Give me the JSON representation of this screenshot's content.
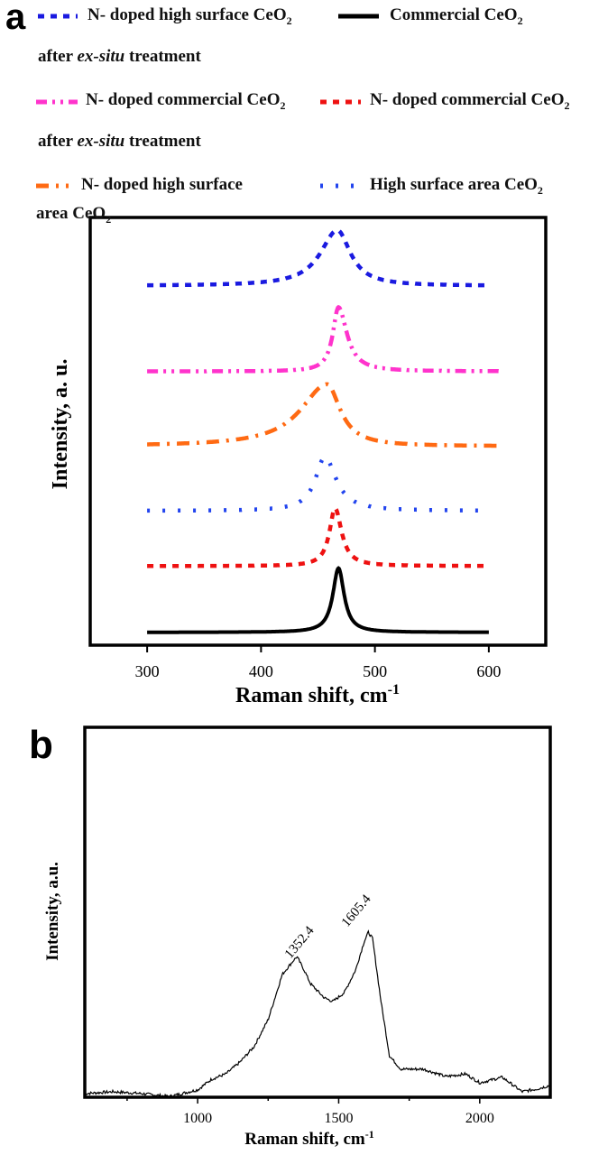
{
  "chart_data": [
    {
      "panel_label": "a",
      "type": "line",
      "xlabel": "Raman shift, cm",
      "xlabel_sup": "-1",
      "ylabel": "Intensity, a. u.",
      "xlim": [
        250,
        650
      ],
      "ylim": [
        0,
        100
      ],
      "xticks": [
        300,
        400,
        500,
        600
      ],
      "xtick_labels": [
        "300",
        "400",
        "500",
        "600"
      ],
      "grid": false,
      "legend_placement": "top, above plot",
      "series": [
        {
          "name": "N- doped high surface CeO₂ after ex-situ treatment",
          "color": "#1a1ae0",
          "style": "dashed",
          "x_range": [
            300,
            600
          ],
          "baseline": 84,
          "peak_height": 13,
          "peak_center": 467,
          "hwhm_left": 18,
          "hwhm_right": 14
        },
        {
          "name": "Commercial CeO₂",
          "color": "#000000",
          "style": "solid",
          "x_range": [
            300,
            600
          ],
          "baseline": 3,
          "peak_height": 15,
          "peak_center": 468,
          "hwhm_left": 6,
          "hwhm_right": 6
        },
        {
          "name": "N- doped commercial CeO₂ after ex-situ treatment",
          "color": "#ff33cc",
          "style": "dash-dot-dot",
          "x_range": [
            300,
            610
          ],
          "baseline": 64,
          "peak_height": 15,
          "peak_center": 468,
          "hwhm_left": 6,
          "hwhm_right": 9
        },
        {
          "name": "N- doped commercial CeO₂",
          "color": "#ee1111",
          "style": "dashed",
          "x_range": [
            300,
            600
          ],
          "baseline": 18.5,
          "peak_height": 13.5,
          "peak_center": 465,
          "hwhm_left": 6,
          "hwhm_right": 7
        },
        {
          "name": "N- doped high surface area CeO₂",
          "color": "#ff6a13",
          "style": "dash-dot",
          "x_range": [
            300,
            610
          ],
          "baseline": 46.5,
          "peak_height": 14.5,
          "peak_center": 458,
          "hwhm_left": 28,
          "hwhm_right": 14
        },
        {
          "name": "High surface area CeO₂",
          "color": "#2244ee",
          "style": "dotted",
          "x_range": [
            300,
            600
          ],
          "baseline": 31.4,
          "peak_height": 12.6,
          "peak_center": 456,
          "hwhm_left": 10,
          "hwhm_right": 12
        }
      ]
    },
    {
      "panel_label": "b",
      "type": "line",
      "xlabel": "Raman shift, cm",
      "xlabel_sup": "-1",
      "ylabel": "Intensity, a.u.",
      "xlim": [
        600,
        2250
      ],
      "ylim": [
        0,
        100
      ],
      "xticks": [
        1000,
        1500,
        2000
      ],
      "xtick_labels": [
        "1000",
        "1500",
        "2000"
      ],
      "grid": false,
      "annotations": [
        {
          "text": "1352.4",
          "x": 1352.4
        },
        {
          "text": "1605.4",
          "x": 1605.4
        }
      ],
      "series": [
        {
          "color": "#000000",
          "x": [
            600,
            700,
            800,
            900,
            1000,
            1050,
            1100,
            1150,
            1200,
            1250,
            1300,
            1340,
            1352,
            1380,
            1400,
            1450,
            1480,
            1520,
            1560,
            1590,
            1605,
            1620,
            1650,
            1680,
            1720,
            1800,
            1880,
            1950,
            2000,
            2080,
            2150,
            2200,
            2250
          ],
          "y": [
            1,
            1.5,
            1,
            0.2,
            2,
            4.9,
            6.3,
            9.5,
            13.7,
            21,
            33.2,
            37,
            38,
            34,
            30.7,
            26.8,
            25.9,
            28.3,
            34.4,
            42,
            44.6,
            42.9,
            25.9,
            11.2,
            7.6,
            7.6,
            5.6,
            6.3,
            3.9,
            5.4,
            1.5,
            2.2,
            3.2
          ]
        }
      ]
    }
  ]
}
